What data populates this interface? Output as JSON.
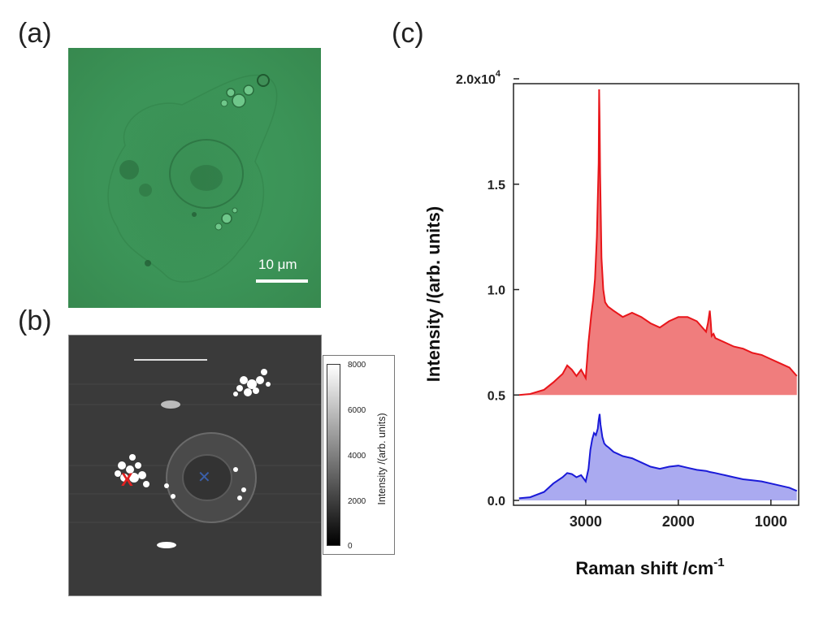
{
  "panels": {
    "a": "(a)",
    "b": "(b)",
    "c": "(c)"
  },
  "micrograph": {
    "scale_bar": "10 μm",
    "tint_color": "#3c9557"
  },
  "raman_map": {
    "markers": [
      {
        "symbol": "X",
        "color": "#e02020"
      },
      {
        "symbol": "✕",
        "color": "#3b5fa8"
      }
    ],
    "colorbar": {
      "ticks": [
        "8000",
        "6000",
        "4000",
        "2000",
        "0"
      ],
      "label": "Intensity /(arb. units)"
    }
  },
  "chart_data": {
    "type": "area",
    "xlabel": "Raman shift /cm",
    "xlabel_superscript": "-1",
    "ylabel": "Intensity /(arb. units)",
    "x_reversed": true,
    "xlim": [
      3780,
      700
    ],
    "ylim": [
      0,
      20000
    ],
    "x_ticks": [
      "3000",
      "2000",
      "1000"
    ],
    "y_ticks": [
      "0.0",
      "0.5",
      "1.0",
      "1.5",
      "2.0x10"
    ],
    "y_tick_exponent": "4",
    "series": [
      {
        "color": "#e8151a",
        "fill": "#f07d7d",
        "baseline": 5000,
        "x": [
          3720,
          3600,
          3450,
          3350,
          3250,
          3200,
          3150,
          3100,
          3050,
          3000,
          2970,
          2940,
          2920,
          2900,
          2880,
          2860,
          2855,
          2850,
          2845,
          2830,
          2810,
          2790,
          2760,
          2700,
          2600,
          2500,
          2400,
          2300,
          2200,
          2100,
          2000,
          1900,
          1800,
          1700,
          1680,
          1660,
          1650,
          1640,
          1620,
          1600,
          1500,
          1400,
          1300,
          1200,
          1100,
          1000,
          900,
          800,
          720
        ],
        "y": [
          5000,
          5050,
          5250,
          5600,
          6000,
          6400,
          6200,
          5900,
          6200,
          5800,
          7500,
          8800,
          9500,
          10500,
          12500,
          16000,
          19500,
          18000,
          15500,
          11500,
          10000,
          9400,
          9200,
          9000,
          8700,
          8900,
          8700,
          8400,
          8200,
          8500,
          8700,
          8700,
          8500,
          8000,
          8400,
          9000,
          8500,
          7800,
          7900,
          7700,
          7500,
          7300,
          7200,
          7000,
          6900,
          6700,
          6500,
          6300,
          5900
        ]
      },
      {
        "color": "#1a1ad8",
        "fill": "#aaaaf0",
        "baseline": 0,
        "x": [
          3720,
          3600,
          3450,
          3350,
          3250,
          3200,
          3150,
          3100,
          3050,
          3000,
          2970,
          2950,
          2930,
          2910,
          2890,
          2870,
          2860,
          2850,
          2840,
          2820,
          2800,
          2780,
          2750,
          2700,
          2600,
          2500,
          2400,
          2300,
          2200,
          2100,
          2000,
          1900,
          1800,
          1700,
          1660,
          1600,
          1500,
          1400,
          1300,
          1200,
          1100,
          1000,
          900,
          800,
          720
        ],
        "y": [
          100,
          150,
          400,
          800,
          1100,
          1300,
          1250,
          1100,
          1200,
          900,
          1500,
          2400,
          2900,
          3200,
          3100,
          3400,
          3800,
          4100,
          3600,
          3000,
          2700,
          2600,
          2500,
          2300,
          2100,
          2000,
          1800,
          1600,
          1500,
          1600,
          1650,
          1550,
          1450,
          1400,
          1350,
          1300,
          1200,
          1100,
          1000,
          950,
          900,
          800,
          700,
          600,
          450
        ]
      }
    ]
  }
}
